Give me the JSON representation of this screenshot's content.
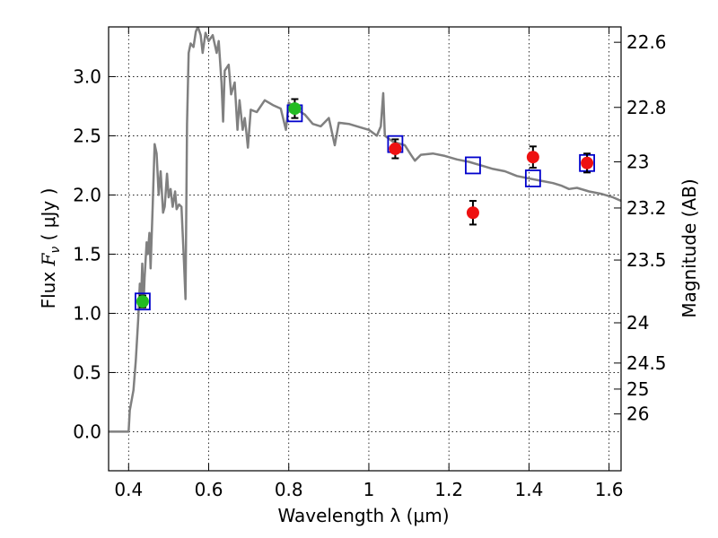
{
  "chart_data": {
    "type": "scatter",
    "xlabel": "Wavelength  λ (μm)",
    "ylabel_left_text": "Flux  ",
    "ylabel_left_math": "F",
    "ylabel_left_sub": "ν",
    "ylabel_left_units": "  ( μJy )",
    "ylabel_right": "Magnitude (AB)",
    "xlim": [
      0.35,
      1.63
    ],
    "ylim": [
      -0.33,
      3.42
    ],
    "grid": true,
    "x_ticks": [
      {
        "value": 0.4,
        "label": "0.4"
      },
      {
        "value": 0.6,
        "label": "0.6"
      },
      {
        "value": 0.8,
        "label": "0.8"
      },
      {
        "value": 1.0,
        "label": "1"
      },
      {
        "value": 1.2,
        "label": "1.2"
      },
      {
        "value": 1.4,
        "label": "1.4"
      },
      {
        "value": 1.6,
        "label": "1.6"
      }
    ],
    "y_ticks": [
      {
        "value": 0.0,
        "label": "0.0"
      },
      {
        "value": 0.5,
        "label": "0.5"
      },
      {
        "value": 1.0,
        "label": "1.0"
      },
      {
        "value": 1.5,
        "label": "1.5"
      },
      {
        "value": 2.0,
        "label": "2.0"
      },
      {
        "value": 2.5,
        "label": "2.5"
      },
      {
        "value": 3.0,
        "label": "3.0"
      }
    ],
    "right_ticks": [
      {
        "flux": 3.29,
        "label": "22.6"
      },
      {
        "flux": 2.74,
        "label": "22.8"
      },
      {
        "flux": 2.28,
        "label": "23"
      },
      {
        "flux": 1.89,
        "label": "23.2"
      },
      {
        "flux": 1.45,
        "label": "23.5"
      },
      {
        "flux": 0.92,
        "label": "24"
      },
      {
        "flux": 0.58,
        "label": "24.5"
      },
      {
        "flux": 0.36,
        "label": "25"
      },
      {
        "flux": 0.15,
        "label": "26"
      }
    ],
    "colors": {
      "template": "#808080",
      "model_box": "#0000cc",
      "optical": "#22bb22",
      "nir": "#ee1111",
      "errorbar": "#000000"
    },
    "template_spectrum": [
      [
        0.35,
        0.0
      ],
      [
        0.4,
        0.0
      ],
      [
        0.403,
        0.18
      ],
      [
        0.412,
        0.35
      ],
      [
        0.418,
        0.6
      ],
      [
        0.424,
        0.95
      ],
      [
        0.428,
        1.25
      ],
      [
        0.431,
        1.1
      ],
      [
        0.434,
        1.42
      ],
      [
        0.437,
        1.05
      ],
      [
        0.44,
        1.3
      ],
      [
        0.445,
        1.6
      ],
      [
        0.448,
        1.5
      ],
      [
        0.452,
        1.68
      ],
      [
        0.455,
        1.38
      ],
      [
        0.46,
        1.9
      ],
      [
        0.465,
        2.43
      ],
      [
        0.47,
        2.35
      ],
      [
        0.475,
        2.0
      ],
      [
        0.48,
        2.2
      ],
      [
        0.486,
        1.85
      ],
      [
        0.49,
        1.9
      ],
      [
        0.496,
        2.18
      ],
      [
        0.5,
        1.98
      ],
      [
        0.505,
        2.05
      ],
      [
        0.51,
        1.9
      ],
      [
        0.516,
        2.03
      ],
      [
        0.52,
        1.88
      ],
      [
        0.526,
        1.92
      ],
      [
        0.532,
        1.9
      ],
      [
        0.538,
        1.45
      ],
      [
        0.542,
        1.12
      ],
      [
        0.546,
        2.6
      ],
      [
        0.55,
        3.2
      ],
      [
        0.555,
        3.28
      ],
      [
        0.562,
        3.25
      ],
      [
        0.568,
        3.38
      ],
      [
        0.573,
        3.42
      ],
      [
        0.58,
        3.35
      ],
      [
        0.585,
        3.2
      ],
      [
        0.592,
        3.37
      ],
      [
        0.6,
        3.3
      ],
      [
        0.61,
        3.35
      ],
      [
        0.62,
        3.2
      ],
      [
        0.625,
        3.3
      ],
      [
        0.632,
        2.95
      ],
      [
        0.636,
        2.62
      ],
      [
        0.64,
        3.05
      ],
      [
        0.65,
        3.1
      ],
      [
        0.656,
        2.85
      ],
      [
        0.665,
        2.95
      ],
      [
        0.672,
        2.55
      ],
      [
        0.677,
        2.8
      ],
      [
        0.685,
        2.55
      ],
      [
        0.69,
        2.65
      ],
      [
        0.694,
        2.53
      ],
      [
        0.698,
        2.4
      ],
      [
        0.705,
        2.72
      ],
      [
        0.72,
        2.7
      ],
      [
        0.74,
        2.8
      ],
      [
        0.76,
        2.76
      ],
      [
        0.78,
        2.73
      ],
      [
        0.793,
        2.55
      ],
      [
        0.8,
        2.78
      ],
      [
        0.82,
        2.72
      ],
      [
        0.84,
        2.68
      ],
      [
        0.86,
        2.6
      ],
      [
        0.88,
        2.58
      ],
      [
        0.9,
        2.65
      ],
      [
        0.915,
        2.42
      ],
      [
        0.925,
        2.61
      ],
      [
        0.95,
        2.6
      ],
      [
        0.98,
        2.57
      ],
      [
        1.0,
        2.55
      ],
      [
        1.02,
        2.5
      ],
      [
        1.03,
        2.58
      ],
      [
        1.036,
        2.86
      ],
      [
        1.04,
        2.5
      ],
      [
        1.06,
        2.45
      ],
      [
        1.09,
        2.42
      ],
      [
        1.105,
        2.34
      ],
      [
        1.115,
        2.29
      ],
      [
        1.13,
        2.34
      ],
      [
        1.16,
        2.35
      ],
      [
        1.19,
        2.33
      ],
      [
        1.22,
        2.3
      ],
      [
        1.25,
        2.28
      ],
      [
        1.28,
        2.25
      ],
      [
        1.31,
        2.22
      ],
      [
        1.34,
        2.2
      ],
      [
        1.37,
        2.16
      ],
      [
        1.4,
        2.14
      ],
      [
        1.43,
        2.12
      ],
      [
        1.46,
        2.1
      ],
      [
        1.48,
        2.08
      ],
      [
        1.5,
        2.05
      ],
      [
        1.52,
        2.06
      ],
      [
        1.55,
        2.03
      ],
      [
        1.58,
        2.01
      ],
      [
        1.61,
        1.98
      ],
      [
        1.63,
        1.95
      ]
    ],
    "model_boxes": [
      {
        "x": 0.435,
        "y": 1.1
      },
      {
        "x": 0.815,
        "y": 2.69
      },
      {
        "x": 1.066,
        "y": 2.43
      },
      {
        "x": 1.26,
        "y": 2.25
      },
      {
        "x": 1.41,
        "y": 2.14
      },
      {
        "x": 1.545,
        "y": 2.27
      }
    ],
    "observed_optical": [
      {
        "x": 0.435,
        "y": 1.1,
        "err": 0.05
      },
      {
        "x": 0.815,
        "y": 2.73,
        "err": 0.08
      }
    ],
    "observed_nir": [
      {
        "x": 1.066,
        "y": 2.39,
        "err": 0.08
      },
      {
        "x": 1.26,
        "y": 1.85,
        "err": 0.1
      },
      {
        "x": 1.41,
        "y": 2.32,
        "err": 0.09
      },
      {
        "x": 1.545,
        "y": 2.27,
        "err": 0.08
      }
    ]
  }
}
